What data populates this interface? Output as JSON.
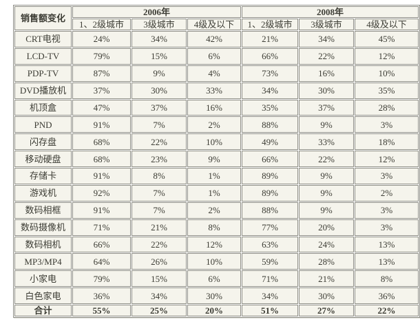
{
  "colors": {
    "page_background": "#ffffff",
    "cell_background": "#f5f4ec",
    "border": "#8e8e86",
    "text": "#3c3c34"
  },
  "chart_data": {
    "type": "table",
    "title": "销售额变化",
    "column_groups": [
      {
        "year": "2006年",
        "columns": [
          "1、2级城市",
          "3级城市",
          "4级及以下"
        ]
      },
      {
        "year": "2008年",
        "columns": [
          "1、2级城市",
          "3级城市",
          "4级及以下"
        ]
      }
    ],
    "rows": [
      {
        "label": "CRT电视",
        "values": [
          "24%",
          "34%",
          "42%",
          "21%",
          "34%",
          "45%"
        ]
      },
      {
        "label": "LCD-TV",
        "values": [
          "79%",
          "15%",
          "6%",
          "66%",
          "22%",
          "12%"
        ]
      },
      {
        "label": "PDP-TV",
        "values": [
          "87%",
          "9%",
          "4%",
          "73%",
          "16%",
          "10%"
        ]
      },
      {
        "label": "DVD播放机",
        "values": [
          "37%",
          "30%",
          "33%",
          "34%",
          "30%",
          "35%"
        ]
      },
      {
        "label": "机顶盒",
        "values": [
          "47%",
          "37%",
          "16%",
          "35%",
          "37%",
          "28%"
        ]
      },
      {
        "label": "PND",
        "values": [
          "91%",
          "7%",
          "2%",
          "88%",
          "9%",
          "3%"
        ]
      },
      {
        "label": "闪存盘",
        "values": [
          "68%",
          "22%",
          "10%",
          "49%",
          "33%",
          "18%"
        ]
      },
      {
        "label": "移动硬盘",
        "values": [
          "68%",
          "23%",
          "9%",
          "66%",
          "22%",
          "12%"
        ]
      },
      {
        "label": "存储卡",
        "values": [
          "91%",
          "8%",
          "1%",
          "89%",
          "9%",
          "3%"
        ]
      },
      {
        "label": "游戏机",
        "values": [
          "92%",
          "7%",
          "1%",
          "89%",
          "9%",
          "2%"
        ]
      },
      {
        "label": "数码相框",
        "values": [
          "91%",
          "7%",
          "2%",
          "88%",
          "9%",
          "3%"
        ]
      },
      {
        "label": "数码摄像机",
        "values": [
          "71%",
          "21%",
          "8%",
          "77%",
          "20%",
          "3%"
        ]
      },
      {
        "label": "数码相机",
        "values": [
          "66%",
          "22%",
          "12%",
          "63%",
          "24%",
          "13%"
        ]
      },
      {
        "label": "MP3/MP4",
        "values": [
          "64%",
          "26%",
          "10%",
          "59%",
          "28%",
          "13%"
        ]
      },
      {
        "label": "小家电",
        "values": [
          "79%",
          "15%",
          "6%",
          "71%",
          "21%",
          "8%"
        ]
      },
      {
        "label": "白色家电",
        "values": [
          "36%",
          "34%",
          "30%",
          "34%",
          "30%",
          "36%"
        ]
      }
    ],
    "total_row": {
      "label": "合计",
      "values": [
        "55%",
        "25%",
        "20%",
        "51%",
        "27%",
        "22%"
      ]
    }
  }
}
